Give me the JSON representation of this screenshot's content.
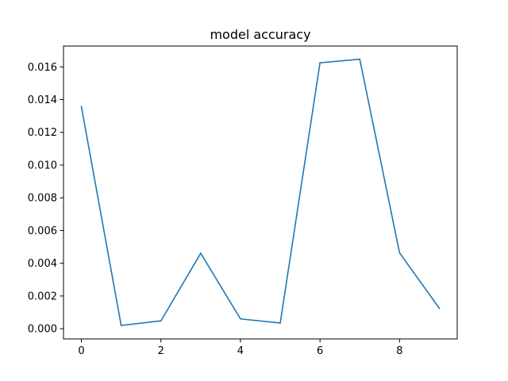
{
  "chart_data": {
    "type": "line",
    "title": "model accuracy",
    "xlabel": "",
    "ylabel": "",
    "xlim": [
      -0.45,
      9.45
    ],
    "ylim": [
      -0.000625,
      0.017275
    ],
    "x_ticks": [
      0,
      2,
      4,
      6,
      8
    ],
    "x_tick_labels": [
      "0",
      "2",
      "4",
      "6",
      "8"
    ],
    "y_ticks": [
      0.0,
      0.002,
      0.004,
      0.006,
      0.008,
      0.01,
      0.012,
      0.014,
      0.016
    ],
    "y_tick_labels": [
      "0.000",
      "0.002",
      "0.004",
      "0.006",
      "0.008",
      "0.010",
      "0.012",
      "0.014",
      "0.016"
    ],
    "grid": false,
    "legend": "none",
    "series": [
      {
        "x": [
          0,
          1,
          2,
          3,
          4,
          5,
          6,
          7,
          8,
          9
        ],
        "values": [
          0.01357,
          0.0002,
          0.00048,
          0.00461,
          0.0006,
          0.00035,
          0.01625,
          0.01647,
          0.00464,
          0.00125
        ],
        "color": "#1f77b4"
      }
    ]
  }
}
